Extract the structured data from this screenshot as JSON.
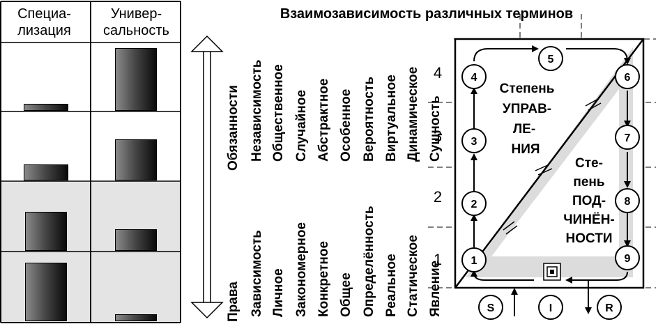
{
  "table": {
    "headers": [
      [
        "Специа-",
        "лизация"
      ],
      [
        "Универ-",
        "сальность"
      ]
    ],
    "rows": [
      {
        "specialization": 0.12,
        "universality": 1.0
      },
      {
        "specialization": 0.35,
        "universality": 0.65
      },
      {
        "specialization": 0.7,
        "universality": 0.35
      },
      {
        "specialization": 1.0,
        "universality": 0.08
      }
    ]
  },
  "diagram": {
    "title": "Взаимозависимость различных терминов",
    "upper_terms": [
      "Обязанности",
      "Независимость",
      "Общественное",
      "Случайное",
      "Абстрактное",
      "Особенное",
      "Вероятность",
      "Виртуальное",
      "Динамическое",
      "Сущность"
    ],
    "lower_terms": [
      "Права",
      "Зависимость",
      "Личное",
      "Закономерное",
      "Конкретное",
      "Общее",
      "Определённость",
      "Реальное",
      "Статическое",
      "Явление"
    ],
    "levels": [
      "1",
      "2",
      "3",
      "4"
    ],
    "nodes": [
      "1",
      "2",
      "3",
      "4",
      "5",
      "6",
      "7",
      "8",
      "9"
    ],
    "upper_triangle_label": [
      "Степень",
      "УПРАВ-",
      "ЛЕ-",
      "НИЯ"
    ],
    "lower_triangle_label": [
      "Сте-",
      "пень",
      "ПОД-",
      "ЧИНЁН-",
      "НОСТИ"
    ],
    "bottom_nodes": [
      "S",
      "I",
      "R"
    ]
  }
}
